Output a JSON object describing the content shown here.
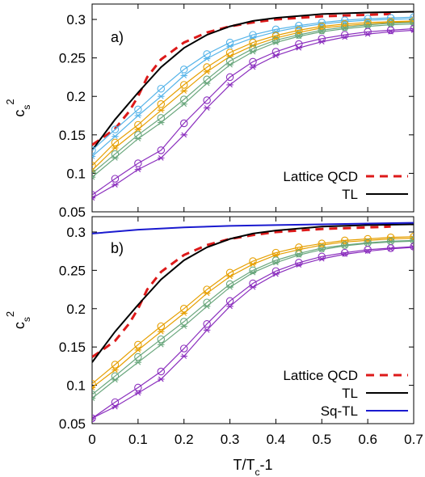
{
  "chart_data": [
    {
      "type": "line",
      "panel_label": "a)",
      "xlabel": "",
      "ylabel": "c_s^2",
      "xlim": [
        0,
        0.7
      ],
      "ylim": [
        0.05,
        0.32
      ],
      "y_ticks": [
        "0.05",
        "0.1",
        "0.15",
        "0.2",
        "0.25",
        "0.3"
      ],
      "x_ticks": [],
      "grid": false,
      "legend_position": "bottom-right",
      "series": [
        {
          "name": "Lattice QCD",
          "color": "#dd1a1a",
          "style": "dashed",
          "x": [
            0.0,
            0.02,
            0.05,
            0.08,
            0.1,
            0.12,
            0.15,
            0.2,
            0.25,
            0.3,
            0.35,
            0.4,
            0.5,
            0.6,
            0.65
          ],
          "y": [
            0.137,
            0.145,
            0.158,
            0.18,
            0.2,
            0.225,
            0.248,
            0.27,
            0.283,
            0.291,
            0.296,
            0.3,
            0.304,
            0.306,
            0.307
          ]
        },
        {
          "name": "TL",
          "color": "#000000",
          "style": "solid",
          "x": [
            0.0,
            0.05,
            0.1,
            0.15,
            0.2,
            0.25,
            0.3,
            0.35,
            0.4,
            0.5,
            0.6,
            0.7
          ],
          "y": [
            0.13,
            0.17,
            0.205,
            0.238,
            0.263,
            0.28,
            0.291,
            0.298,
            0.302,
            0.307,
            0.309,
            0.31
          ]
        },
        {
          "name": "",
          "color": "#56b4e9",
          "marker": "circle",
          "x": [
            0.0,
            0.05,
            0.1,
            0.15,
            0.2,
            0.25,
            0.3,
            0.35,
            0.4,
            0.45,
            0.5,
            0.55,
            0.6,
            0.65,
            0.7
          ],
          "y": [
            0.13,
            0.157,
            0.183,
            0.21,
            0.235,
            0.255,
            0.27,
            0.28,
            0.287,
            0.292,
            0.296,
            0.299,
            0.301,
            0.302,
            0.303
          ]
        },
        {
          "name": "",
          "color": "#56b4e9",
          "marker": "star",
          "x": [
            0.0,
            0.05,
            0.1,
            0.15,
            0.2,
            0.25,
            0.3,
            0.35,
            0.4,
            0.45,
            0.5,
            0.55,
            0.6,
            0.65,
            0.7
          ],
          "y": [
            0.122,
            0.148,
            0.175,
            0.2,
            0.227,
            0.249,
            0.265,
            0.276,
            0.284,
            0.29,
            0.294,
            0.297,
            0.299,
            0.3,
            0.301
          ]
        },
        {
          "name": "",
          "color": "#e69f00",
          "marker": "circle",
          "x": [
            0.0,
            0.05,
            0.1,
            0.15,
            0.2,
            0.25,
            0.3,
            0.35,
            0.4,
            0.45,
            0.5,
            0.55,
            0.6,
            0.65,
            0.7
          ],
          "y": [
            0.11,
            0.14,
            0.163,
            0.19,
            0.215,
            0.238,
            0.257,
            0.27,
            0.279,
            0.286,
            0.291,
            0.294,
            0.296,
            0.297,
            0.298
          ]
        },
        {
          "name": "",
          "color": "#e69f00",
          "marker": "star",
          "x": [
            0.0,
            0.05,
            0.1,
            0.15,
            0.2,
            0.25,
            0.3,
            0.35,
            0.4,
            0.45,
            0.5,
            0.55,
            0.6,
            0.65,
            0.7
          ],
          "y": [
            0.104,
            0.133,
            0.157,
            0.182,
            0.207,
            0.232,
            0.252,
            0.266,
            0.276,
            0.283,
            0.289,
            0.292,
            0.294,
            0.296,
            0.297
          ]
        },
        {
          "name": "",
          "color": "#6aa77d",
          "marker": "circle",
          "x": [
            0.0,
            0.05,
            0.1,
            0.15,
            0.2,
            0.25,
            0.3,
            0.35,
            0.4,
            0.45,
            0.5,
            0.55,
            0.6,
            0.65,
            0.7
          ],
          "y": [
            0.1,
            0.125,
            0.15,
            0.172,
            0.196,
            0.222,
            0.246,
            0.262,
            0.273,
            0.28,
            0.286,
            0.29,
            0.293,
            0.295,
            0.296
          ]
        },
        {
          "name": "",
          "color": "#6aa77d",
          "marker": "star",
          "x": [
            0.0,
            0.05,
            0.1,
            0.15,
            0.2,
            0.25,
            0.3,
            0.35,
            0.4,
            0.45,
            0.5,
            0.55,
            0.6,
            0.65,
            0.7
          ],
          "y": [
            0.095,
            0.12,
            0.145,
            0.166,
            0.19,
            0.217,
            0.241,
            0.258,
            0.27,
            0.278,
            0.284,
            0.288,
            0.291,
            0.293,
            0.294
          ]
        },
        {
          "name": "",
          "color": "#8b2fbe",
          "marker": "circle",
          "x": [
            0.0,
            0.05,
            0.1,
            0.15,
            0.2,
            0.25,
            0.3,
            0.35,
            0.4,
            0.45,
            0.5,
            0.55,
            0.6,
            0.65,
            0.7
          ],
          "y": [
            0.072,
            0.093,
            0.113,
            0.13,
            0.165,
            0.195,
            0.225,
            0.245,
            0.258,
            0.268,
            0.275,
            0.28,
            0.284,
            0.286,
            0.288
          ]
        },
        {
          "name": "",
          "color": "#8b2fbe",
          "marker": "star",
          "x": [
            0.0,
            0.05,
            0.1,
            0.15,
            0.2,
            0.25,
            0.3,
            0.35,
            0.4,
            0.45,
            0.5,
            0.55,
            0.6,
            0.65,
            0.7
          ],
          "y": [
            0.068,
            0.085,
            0.105,
            0.12,
            0.15,
            0.185,
            0.215,
            0.238,
            0.253,
            0.263,
            0.271,
            0.277,
            0.281,
            0.284,
            0.286
          ]
        }
      ]
    },
    {
      "type": "line",
      "panel_label": "b)",
      "xlabel": "T/T_c-1",
      "ylabel": "c_s^2",
      "xlim": [
        0,
        0.7
      ],
      "ylim": [
        0.05,
        0.32
      ],
      "y_ticks": [
        "0.05",
        "0.1",
        "0.15",
        "0.2",
        "0.25",
        "0.3"
      ],
      "x_ticks": [
        "0",
        "0.1",
        "0.2",
        "0.3",
        "0.4",
        "0.5",
        "0.6",
        "0.7"
      ],
      "grid": false,
      "legend_position": "bottom-right",
      "series": [
        {
          "name": "Lattice QCD",
          "color": "#dd1a1a",
          "style": "dashed",
          "x": [
            0.0,
            0.02,
            0.05,
            0.08,
            0.1,
            0.12,
            0.15,
            0.2,
            0.25,
            0.3,
            0.35,
            0.4,
            0.5,
            0.6,
            0.65
          ],
          "y": [
            0.137,
            0.145,
            0.158,
            0.18,
            0.2,
            0.225,
            0.248,
            0.27,
            0.283,
            0.291,
            0.296,
            0.3,
            0.304,
            0.306,
            0.307
          ]
        },
        {
          "name": "TL",
          "color": "#000000",
          "style": "solid",
          "x": [
            0.0,
            0.05,
            0.1,
            0.15,
            0.2,
            0.25,
            0.3,
            0.35,
            0.4,
            0.5,
            0.6,
            0.7
          ],
          "y": [
            0.13,
            0.17,
            0.205,
            0.238,
            0.263,
            0.28,
            0.291,
            0.298,
            0.302,
            0.307,
            0.309,
            0.31
          ]
        },
        {
          "name": "Sq-TL",
          "color": "#1a1acf",
          "style": "solid",
          "x": [
            0.0,
            0.1,
            0.2,
            0.3,
            0.4,
            0.5,
            0.6,
            0.7
          ],
          "y": [
            0.298,
            0.303,
            0.306,
            0.308,
            0.309,
            0.31,
            0.311,
            0.312
          ]
        },
        {
          "name": "",
          "color": "#e69f00",
          "marker": "circle",
          "x": [
            0.0,
            0.05,
            0.1,
            0.15,
            0.2,
            0.25,
            0.3,
            0.35,
            0.4,
            0.45,
            0.5,
            0.55,
            0.6,
            0.65,
            0.7
          ],
          "y": [
            0.102,
            0.127,
            0.153,
            0.177,
            0.2,
            0.225,
            0.247,
            0.262,
            0.273,
            0.28,
            0.285,
            0.289,
            0.291,
            0.293,
            0.294
          ]
        },
        {
          "name": "",
          "color": "#e69f00",
          "marker": "star",
          "x": [
            0.0,
            0.05,
            0.1,
            0.15,
            0.2,
            0.25,
            0.3,
            0.35,
            0.4,
            0.45,
            0.5,
            0.55,
            0.6,
            0.65,
            0.7
          ],
          "y": [
            0.097,
            0.12,
            0.146,
            0.17,
            0.194,
            0.22,
            0.242,
            0.258,
            0.27,
            0.277,
            0.283,
            0.287,
            0.289,
            0.291,
            0.292
          ]
        },
        {
          "name": "",
          "color": "#6aa77d",
          "marker": "circle",
          "x": [
            0.0,
            0.05,
            0.1,
            0.15,
            0.2,
            0.25,
            0.3,
            0.35,
            0.4,
            0.45,
            0.5,
            0.55,
            0.6,
            0.65,
            0.7
          ],
          "y": [
            0.088,
            0.112,
            0.137,
            0.16,
            0.183,
            0.208,
            0.232,
            0.25,
            0.263,
            0.272,
            0.279,
            0.283,
            0.286,
            0.288,
            0.289
          ]
        },
        {
          "name": "",
          "color": "#6aa77d",
          "marker": "star",
          "x": [
            0.0,
            0.05,
            0.1,
            0.15,
            0.2,
            0.25,
            0.3,
            0.35,
            0.4,
            0.45,
            0.5,
            0.55,
            0.6,
            0.65,
            0.7
          ],
          "y": [
            0.083,
            0.107,
            0.13,
            0.153,
            0.177,
            0.203,
            0.228,
            0.247,
            0.26,
            0.27,
            0.277,
            0.282,
            0.285,
            0.287,
            0.288
          ]
        },
        {
          "name": "",
          "color": "#8b2fbe",
          "marker": "circle",
          "x": [
            0.0,
            0.05,
            0.1,
            0.15,
            0.2,
            0.25,
            0.3,
            0.35,
            0.4,
            0.45,
            0.5,
            0.55,
            0.6,
            0.65,
            0.7
          ],
          "y": [
            0.057,
            0.078,
            0.097,
            0.118,
            0.148,
            0.18,
            0.21,
            0.233,
            0.249,
            0.26,
            0.268,
            0.273,
            0.277,
            0.279,
            0.281
          ]
        },
        {
          "name": "",
          "color": "#8b2fbe",
          "marker": "star",
          "x": [
            0.0,
            0.05,
            0.1,
            0.15,
            0.2,
            0.25,
            0.3,
            0.35,
            0.4,
            0.45,
            0.5,
            0.55,
            0.6,
            0.65,
            0.7
          ],
          "y": [
            0.057,
            0.072,
            0.09,
            0.108,
            0.138,
            0.172,
            0.203,
            0.228,
            0.245,
            0.257,
            0.265,
            0.271,
            0.275,
            0.278,
            0.28
          ]
        }
      ]
    }
  ]
}
